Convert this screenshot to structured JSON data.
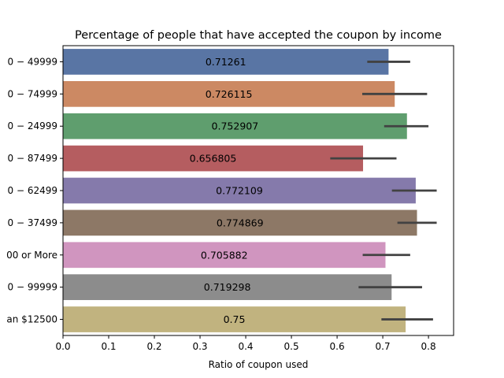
{
  "chart_data": {
    "type": "bar",
    "orientation": "horizontal",
    "title": "Percentage of people that have accepted the coupon by income",
    "xlabel": "Ratio of coupon used",
    "ylabel": "",
    "xlim": [
      0,
      0.855
    ],
    "xticks": [
      "0.0",
      "0.1",
      "0.2",
      "0.3",
      "0.4",
      "0.5",
      "0.6",
      "0.7",
      "0.8"
    ],
    "categories": [
      "0 − 49999",
      "0 − 74999",
      "0 − 24999",
      "0 − 87499",
      "0 − 62499",
      "0 − 37499",
      "00 or More",
      "0 − 99999",
      "an $12500"
    ],
    "values": [
      0.71261,
      0.726115,
      0.752907,
      0.656805,
      0.772109,
      0.774869,
      0.705882,
      0.719298,
      0.75
    ],
    "value_labels": [
      "0.71261",
      "0.726115",
      "0.752907",
      "0.656805",
      "0.772109",
      "0.774869",
      "0.705882",
      "0.719298",
      "0.75"
    ],
    "ci_low": [
      0.666,
      0.655,
      0.703,
      0.585,
      0.72,
      0.732,
      0.656,
      0.647,
      0.697
    ],
    "ci_high": [
      0.76,
      0.797,
      0.8,
      0.73,
      0.818,
      0.818,
      0.76,
      0.786,
      0.81
    ],
    "colors": [
      "#5975a4",
      "#cc8963",
      "#5f9e6e",
      "#b55d60",
      "#857aab",
      "#8d7866",
      "#d095bf",
      "#8c8c8c",
      "#c1b37f"
    ],
    "errorbar_color": "#424242",
    "grid": false,
    "legend": "none"
  }
}
